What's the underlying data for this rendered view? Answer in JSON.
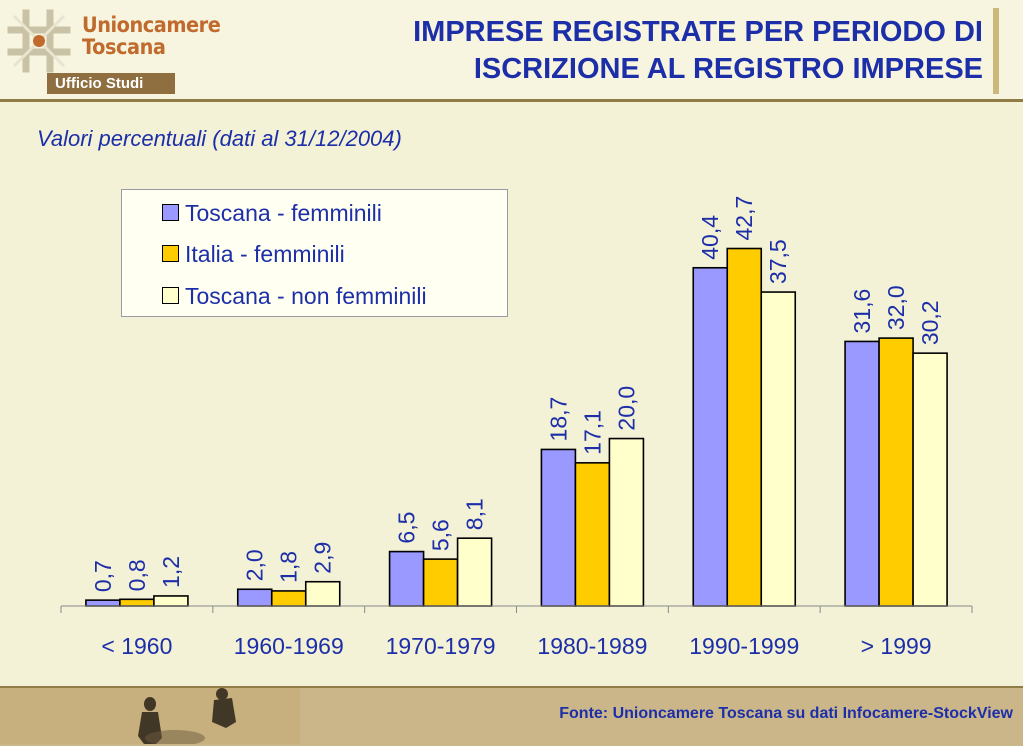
{
  "header": {
    "logo_line1": "Unioncamere",
    "logo_line2": "Toscana",
    "office": "Ufficio Studi",
    "title_line1": "IMPRESE REGISTRATE PER PERIODO DI",
    "title_line2": "ISCRIZIONE AL REGISTRO IMPRESE"
  },
  "subtitle": "Valori percentuali (dati al 31/12/2004)",
  "footer": {
    "source": "Fonte: Unioncamere Toscana su dati Infocamere-StockView"
  },
  "colors": {
    "title": "#1d2fa8",
    "toscana_femminili": "#9999ff",
    "italia_femminili": "#ffcc00",
    "toscana_non_femminili": "#ffffcc"
  },
  "chart_data": {
    "type": "bar",
    "categories": [
      "< 1960",
      "1960-1969",
      "1970-1979",
      "1980-1989",
      "1990-1999",
      "> 1999"
    ],
    "series": [
      {
        "name": "Toscana - femminili",
        "color": "#9999ff",
        "values": [
          0.7,
          2.0,
          6.5,
          18.7,
          40.4,
          31.6
        ],
        "labels": [
          "0,7",
          "2,0",
          "6,5",
          "18,7",
          "40,4",
          "31,6"
        ]
      },
      {
        "name": "Italia - femminili",
        "color": "#ffcc00",
        "values": [
          0.8,
          1.8,
          5.6,
          17.1,
          42.7,
          32.0
        ],
        "labels": [
          "0,8",
          "1,8",
          "5,6",
          "17,1",
          "42,7",
          "32,0"
        ]
      },
      {
        "name": "Toscana - non femminili",
        "color": "#ffffcc",
        "values": [
          1.2,
          2.9,
          8.1,
          20.0,
          37.5,
          30.2
        ],
        "labels": [
          "1,2",
          "2,9",
          "8,1",
          "20,0",
          "37,5",
          "30,2"
        ]
      }
    ],
    "ylim": [
      0,
      43
    ],
    "legend": "top-left",
    "grid": false,
    "title": "",
    "xlabel": "",
    "ylabel": ""
  }
}
